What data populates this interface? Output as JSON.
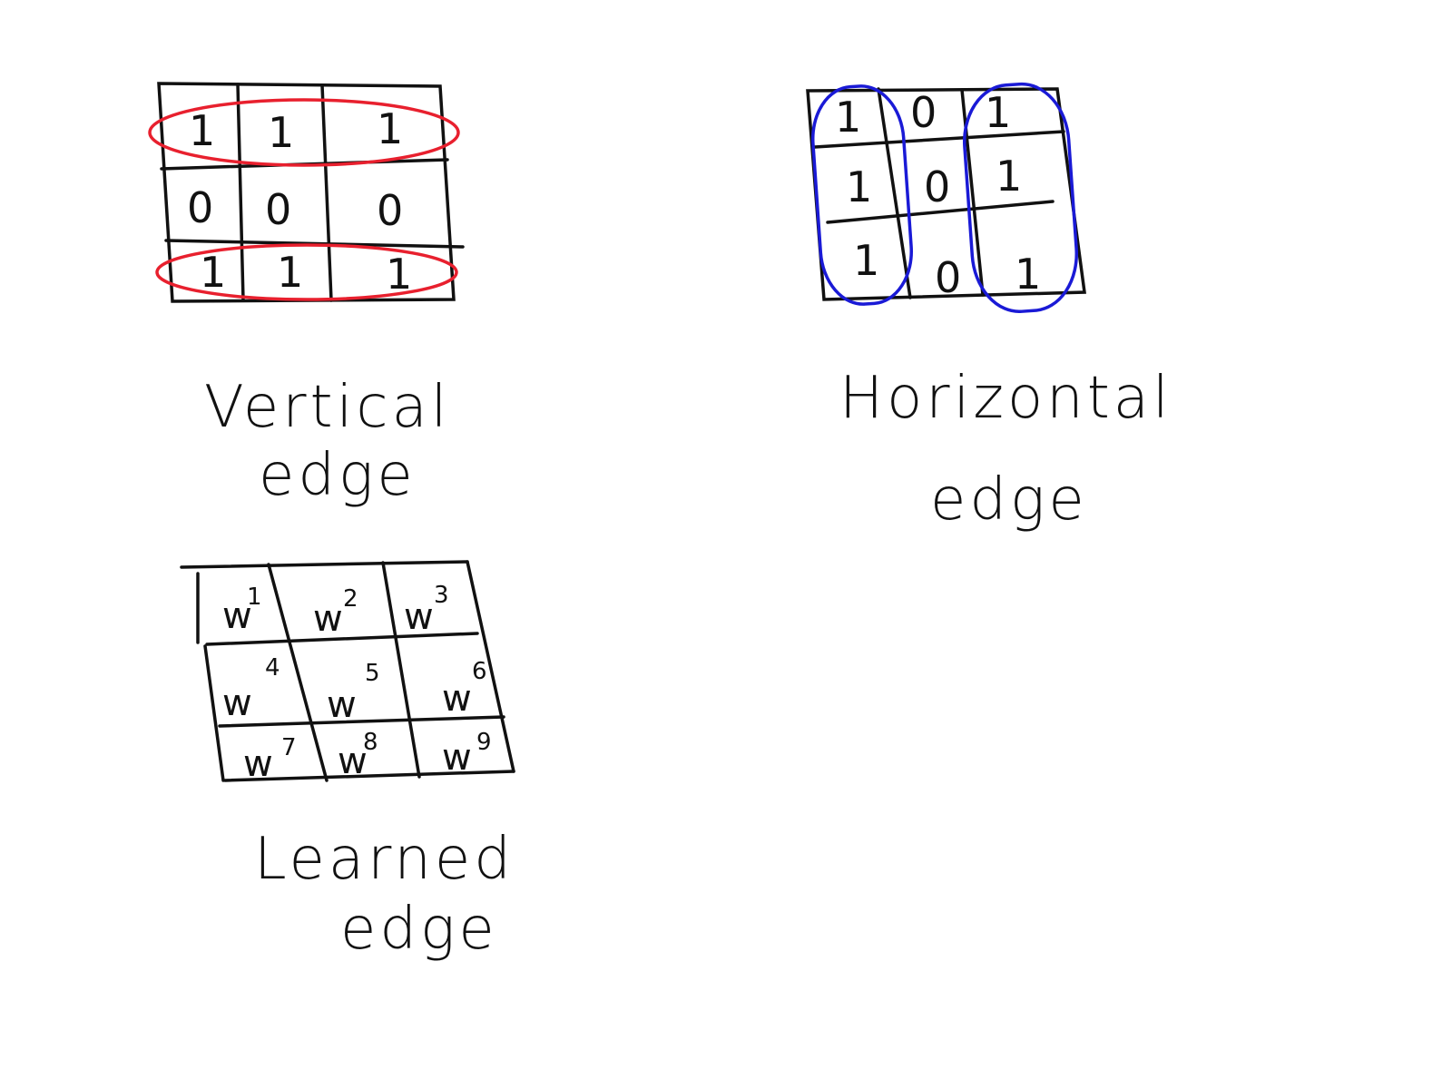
{
  "colors": {
    "ink": "#111111",
    "vertical_highlight": "#e8202e",
    "horizontal_highlight": "#1a1ad6"
  },
  "vertical": {
    "grid": [
      [
        "1",
        "1",
        "1"
      ],
      [
        "0",
        "0",
        "0"
      ],
      [
        "1",
        "1",
        "1"
      ]
    ],
    "caption_line1": "Vertical",
    "caption_line2": "edge"
  },
  "horizontal": {
    "grid": [
      [
        "1",
        "0",
        "1"
      ],
      [
        "1",
        "0",
        "1"
      ],
      [
        "1",
        "0",
        "1"
      ]
    ],
    "caption_line1": "Horizontal",
    "caption_line2": "edge"
  },
  "learned": {
    "grid": [
      [
        {
          "base": "w",
          "sup": "1"
        },
        {
          "base": "w",
          "sup": "2"
        },
        {
          "base": "w",
          "sup": "3"
        }
      ],
      [
        {
          "base": "w",
          "sup": "4"
        },
        {
          "base": "w",
          "sup": "5"
        },
        {
          "base": "w",
          "sup": "6"
        }
      ],
      [
        {
          "base": "w",
          "sup": "7"
        },
        {
          "base": "w",
          "sup": "8"
        },
        {
          "base": "w",
          "sup": "9"
        }
      ]
    ],
    "caption_line1": "Learned",
    "caption_line2": "edge"
  }
}
